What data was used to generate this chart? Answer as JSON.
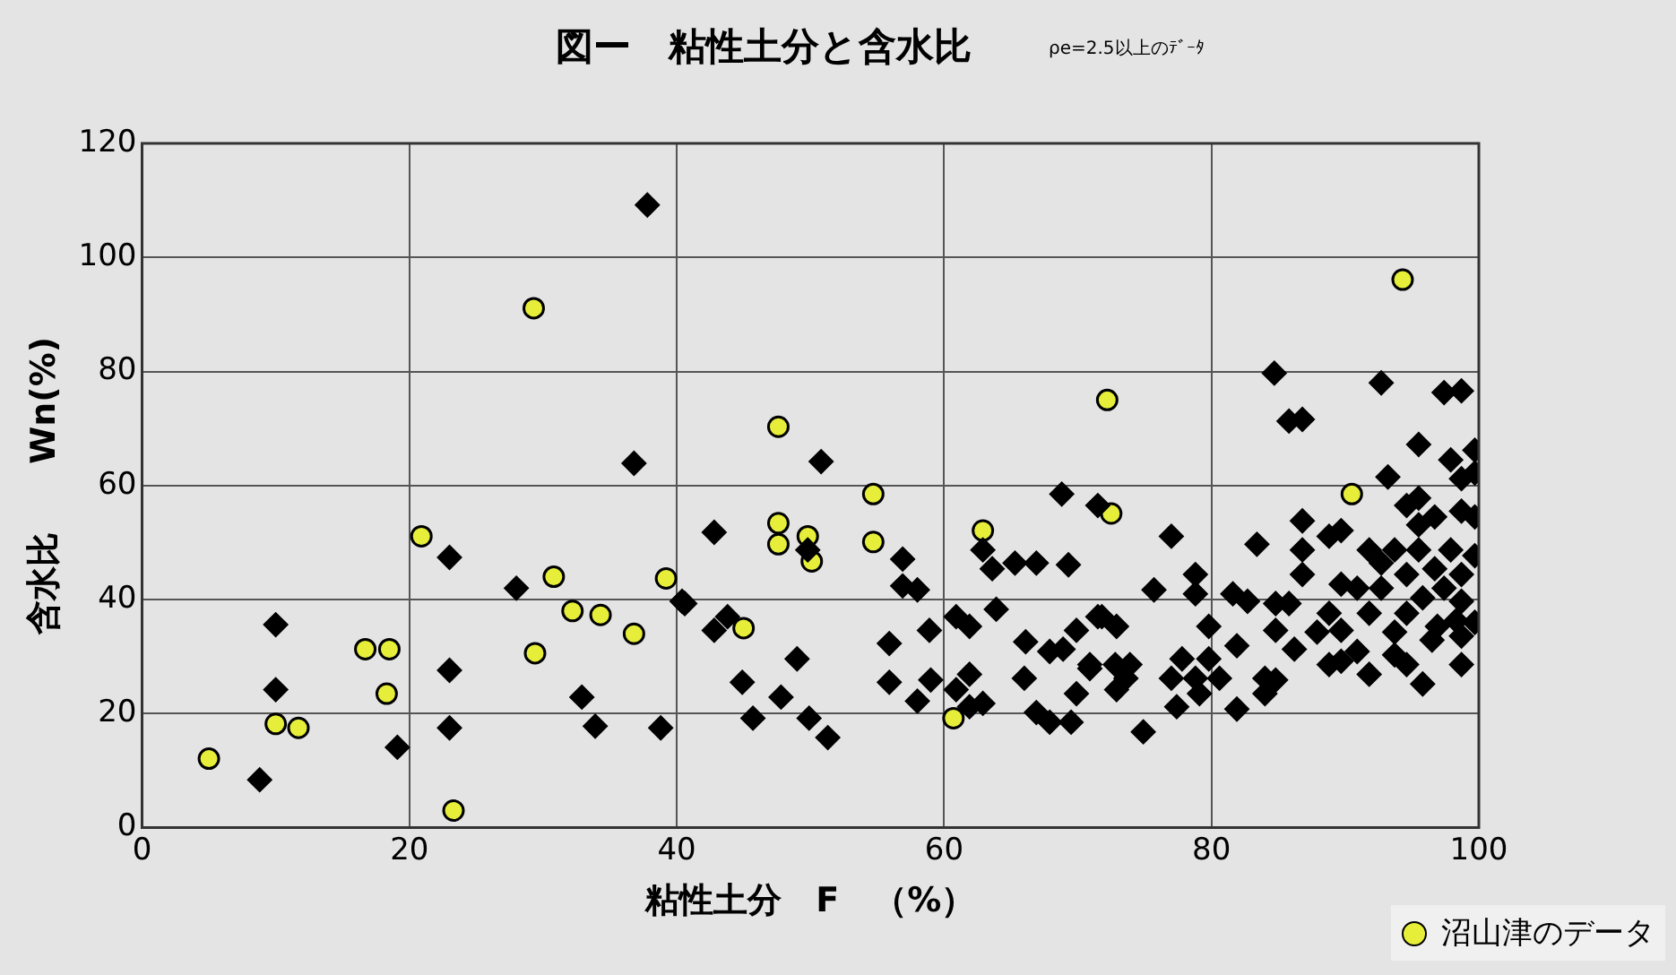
{
  "chart_data": {
    "type": "scatter",
    "title": "図ー　粘性土分と含水比",
    "subtitle": "ρe=2.5以上のﾃﾞｰﾀ",
    "xlabel": "粘性土分　F　（%）",
    "ylabel": "含水比　　Wn(%)",
    "xlim": [
      0,
      100
    ],
    "xticks": [
      0,
      20,
      40,
      60,
      80,
      100
    ],
    "ylim": [
      0,
      120
    ],
    "yticks": [
      0,
      20,
      40,
      60,
      80,
      100,
      120
    ],
    "grid": true,
    "legend": "bottom right",
    "series": [
      {
        "color": "#000000",
        "marker": "diamond",
        "x": [
          37.8,
          36.8,
          23.0,
          28.0,
          40.4,
          10.0,
          10.0,
          23.0,
          32.9,
          33.9,
          38.8,
          23.0,
          19.1,
          8.8,
          50.8,
          42.8,
          49.8,
          56.9,
          56.9,
          58.0,
          40.6,
          42.8,
          43.8,
          49.0,
          44.9,
          47.8,
          45.7,
          49.9,
          51.3,
          55.9,
          55.9,
          58.9,
          58.0,
          59.0,
          60.9,
          61.9,
          60.9,
          61.9,
          62.9,
          61.9,
          63.9,
          62.9,
          63.6,
          65.3,
          66.9,
          69.3,
          68.8,
          66.1,
          66.0,
          66.9,
          67.9,
          69.5,
          67.9,
          68.9,
          69.9,
          69.9,
          70.9,
          71.5,
          71.5,
          77.0,
          75.7,
          78.8,
          78.8,
          71.8,
          72.9,
          70.9,
          72.8,
          73.9,
          72.9,
          73.6,
          74.9,
          77.0,
          77.8,
          78.8,
          77.4,
          79.8,
          79.8,
          79.1,
          80.6,
          81.9,
          81.9,
          81.6,
          82.7,
          83.4,
          84.0,
          84.0,
          84.8,
          84.8,
          84.8,
          85.8,
          86.2,
          84.7,
          85.8,
          86.8,
          86.8,
          86.8,
          86.8,
          87.9,
          88.8,
          88.8,
          89.7,
          89.7,
          88.8,
          89.7,
          89.7,
          90.9,
          90.9,
          91.8,
          91.8,
          92.7,
          93.2,
          92.7,
          92.7,
          93.7,
          93.7,
          94.6,
          94.6,
          94.6,
          95.5,
          95.5,
          95.5,
          95.8,
          95.8,
          96.5,
          96.9,
          97.4,
          98.7,
          97.9,
          98.7,
          98.7,
          99.7,
          99.7,
          99.7,
          99.7,
          99.7,
          98.7,
          98.7,
          98.7,
          98.7,
          97.9,
          97.4,
          98.3,
          96.7,
          96.7,
          95.5,
          93.7,
          91.8,
          94.6
        ],
        "values": [
          109.2,
          63.9,
          47.4,
          42.0,
          39.7,
          35.6,
          24.2,
          27.6,
          22.9,
          17.8,
          17.5,
          17.5,
          14.1,
          8.4,
          64.2,
          51.8,
          48.7,
          47.1,
          42.4,
          41.7,
          39.3,
          34.6,
          37.0,
          29.6,
          25.5,
          22.9,
          19.2,
          19.2,
          15.8,
          32.3,
          25.5,
          34.6,
          22.2,
          25.9,
          37.0,
          35.3,
          24.2,
          26.9,
          21.8,
          21.2,
          38.3,
          48.7,
          45.4,
          46.4,
          46.4,
          46.1,
          58.5,
          32.6,
          26.2,
          20.2,
          18.5,
          18.5,
          30.9,
          31.3,
          34.6,
          23.5,
          27.9,
          37.0,
          56.5,
          51.1,
          41.7,
          44.4,
          41.0,
          37.0,
          35.3,
          28.6,
          28.6,
          28.6,
          24.2,
          26.2,
          16.8,
          26.2,
          29.6,
          26.2,
          21.2,
          35.3,
          29.6,
          23.5,
          26.2,
          31.9,
          20.8,
          41.0,
          39.7,
          49.7,
          26.2,
          23.5,
          25.9,
          39.3,
          34.6,
          39.3,
          31.3,
          79.7,
          71.3,
          71.6,
          53.8,
          48.7,
          44.4,
          34.3,
          37.6,
          28.6,
          34.6,
          29.2,
          51.1,
          52.1,
          42.7,
          42.0,
          30.9,
          37.6,
          26.9,
          78.0,
          61.5,
          46.4,
          42.0,
          34.3,
          30.3,
          44.4,
          37.6,
          28.6,
          67.2,
          53.1,
          48.7,
          40.3,
          25.2,
          32.9,
          35.3,
          76.3,
          76.6,
          64.5,
          61.2,
          55.5,
          66.2,
          62.2,
          54.5,
          47.7,
          36.0,
          44.4,
          39.7,
          33.6,
          28.6,
          48.7,
          42.0,
          36.3,
          54.5,
          45.4,
          57.8,
          48.7,
          48.7,
          56.5
        ]
      },
      {
        "name": "沼山津のデータ",
        "color": "#e6ee3a",
        "marker": "circle",
        "x": [
          5.0,
          10.0,
          11.7,
          16.7,
          18.5,
          18.3,
          20.9,
          23.3,
          29.3,
          29.4,
          30.8,
          32.2,
          34.3,
          36.8,
          39.2,
          45.0,
          47.6,
          47.6,
          47.6,
          49.8,
          50.1,
          54.7,
          54.7,
          60.7,
          62.9,
          72.2,
          72.5,
          90.5,
          94.3
        ],
        "values": [
          12.1,
          18.2,
          17.5,
          31.3,
          31.3,
          23.5,
          51.1,
          3.0,
          91.1,
          30.6,
          44.0,
          38.0,
          37.3,
          34.0,
          43.7,
          35.0,
          70.3,
          53.4,
          49.7,
          51.1,
          46.7,
          58.5,
          50.1,
          19.2,
          52.1,
          75.0,
          55.1,
          58.5,
          96.1
        ]
      }
    ]
  }
}
